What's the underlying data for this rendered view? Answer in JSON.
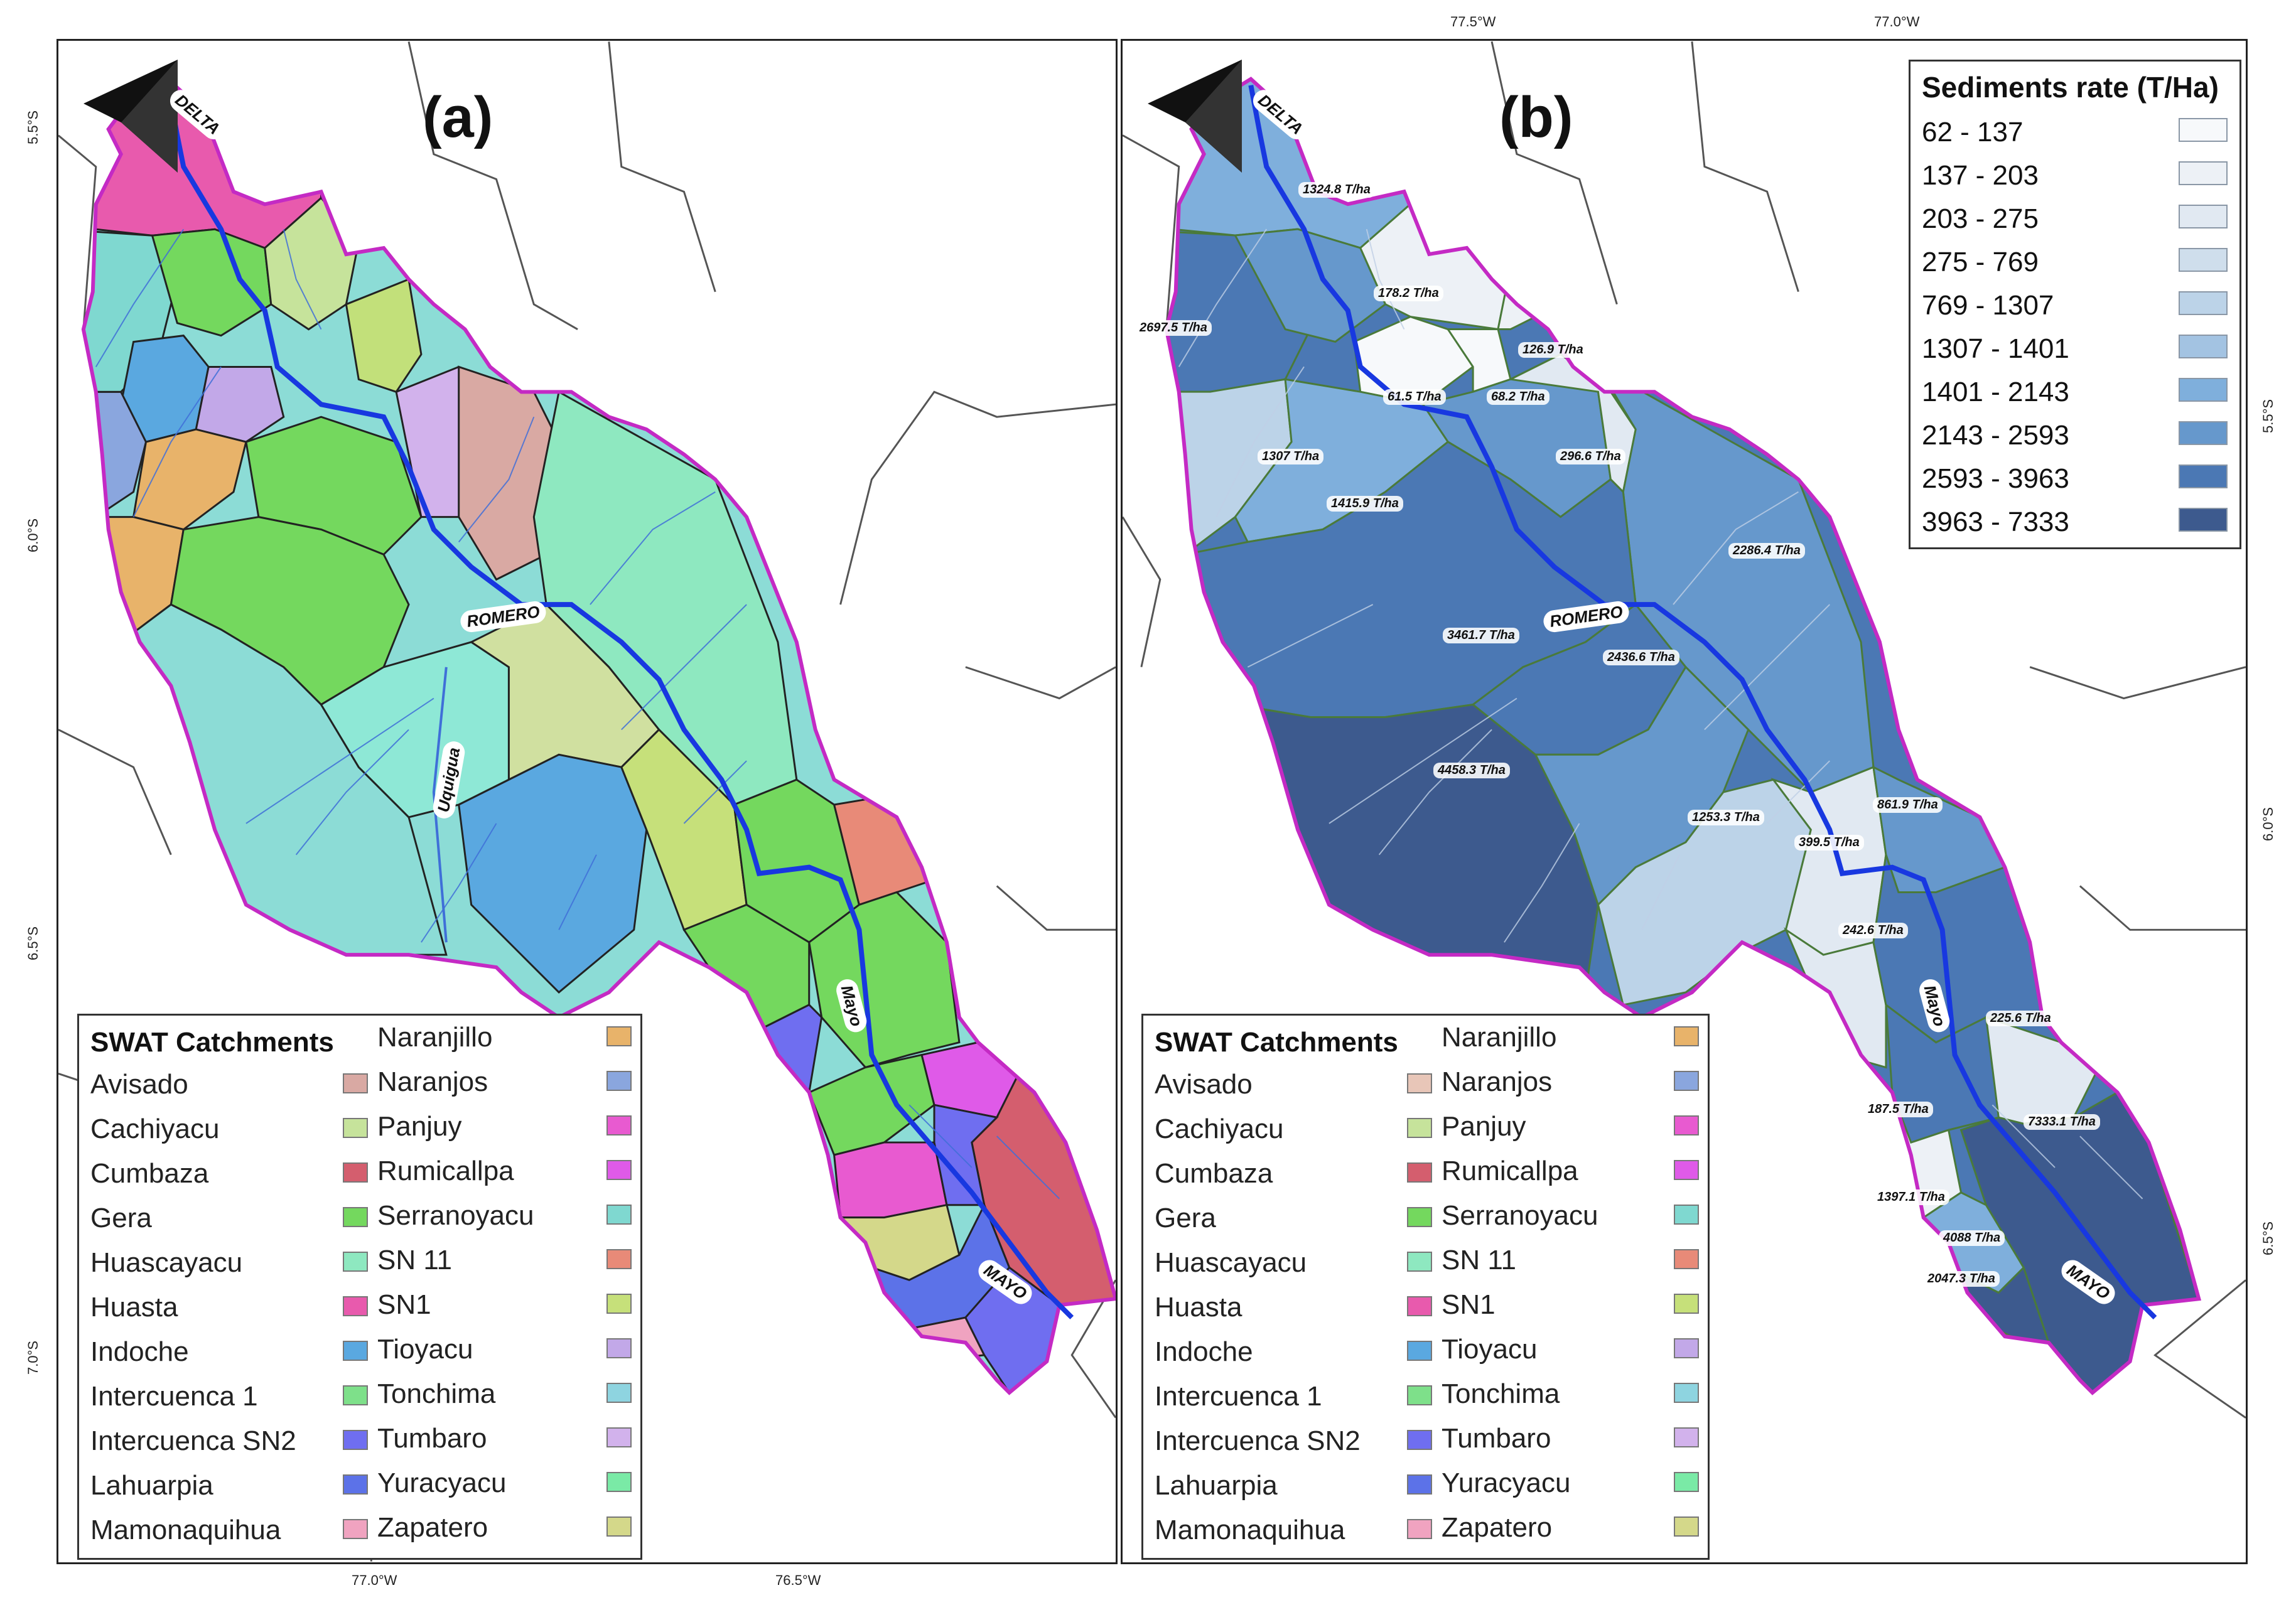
{
  "panel_a": {
    "label": "(a)"
  },
  "panel_b": {
    "label": "(b)"
  },
  "rivers": {
    "delta": "DELTA",
    "romero": "ROMERO",
    "uquigua": "Uquigua",
    "mayo": "Mayo",
    "mayo_upper": "MAYO"
  },
  "ticks": {
    "a_bottom": [
      "77.0°W",
      "76.5°W"
    ],
    "a_left": [
      "5.5°S",
      "6.0°S",
      "6.5°S",
      "7.0°S"
    ],
    "b_top": [
      "77.5°W",
      "77.0°W"
    ],
    "b_right": [
      "5.5°S",
      "6.0°S",
      "6.5°S"
    ]
  },
  "catchment_legend": {
    "title": "SWAT Catchments",
    "col1": [
      "Avisado",
      "Cachiyacu",
      "Cumbaza",
      "Gera",
      "Huascayacu",
      "Huasta",
      "Indoche",
      "Intercuenca 1",
      "Intercuenca SN2",
      "Lahuarpia",
      "Mamonaquihua"
    ],
    "col2": [
      "Naranjillo",
      "Naranjos",
      "Panjuy",
      "Rumicallpa",
      "Serranoyacu",
      "SN 11",
      "SN1",
      "Tioyacu",
      "Tonchima",
      "Tumbaro",
      "Yuracyacu",
      "Zapatero"
    ],
    "col1_colors": [
      "#d9a9a3",
      "#c6e39b",
      "#d45e6e",
      "#74d85e",
      "#8ee8c0",
      "#e85aad",
      "#5aa8e0",
      "#7ee08a",
      "#6f6ef0",
      "#5c72e8",
      "#f0a3c0"
    ],
    "col2_colors": [
      "#e8b36a",
      "#8aa6de",
      "#e85ad0",
      "#df5ae8",
      "#7fd8d0",
      "#e88a78",
      "#c6e07a",
      "#c2a8e8",
      "#8ed4e0",
      "#d2b2ec",
      "#7aeaa6",
      "#d4d88a"
    ]
  },
  "sediment_legend": {
    "title": "Sediments rate (T/Ha)",
    "classes": [
      "62 - 137",
      "137 - 203",
      "203 - 275",
      "275 - 769",
      "769 - 1307",
      "1307 - 1401",
      "1401 - 2143",
      "2143 - 2593",
      "2593 - 3963",
      "3963 - 7333"
    ],
    "colors": [
      "#f7f9fb",
      "#edf1f6",
      "#e1e9f2",
      "#cfdeec",
      "#bcd3e8",
      "#a3c3e2",
      "#7fafdc",
      "#6698cc",
      "#4b78b4",
      "#3d5a8e"
    ]
  },
  "sediment_values": [
    "1324.8 T/ha",
    "2697.5 T/ha",
    "178.2 T/ha",
    "126.9 T/ha",
    "61.5 T/ha",
    "68.2 T/ha",
    "1307 T/ha",
    "296.6 T/ha",
    "1415.9 T/ha",
    "2286.4 T/ha",
    "3461.7 T/ha",
    "2436.6 T/ha",
    "4458.3 T/ha",
    "1253.3 T/ha",
    "399.5 T/ha",
    "861.9 T/ha",
    "242.6 T/ha",
    "225.6 T/ha",
    "187.5 T/ha",
    "7333.1 T/ha",
    "1397.1 T/ha",
    "4088 T/ha",
    "2047.3 T/ha"
  ]
}
